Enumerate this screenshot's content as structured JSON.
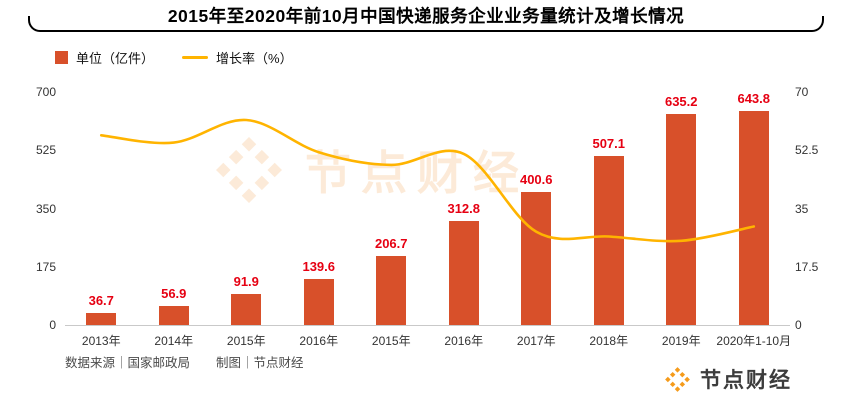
{
  "title": {
    "text": "2015年至2020年前10月中国快递服务企业业务量统计及增长情况"
  },
  "legend": {
    "bar": "单位（亿件）",
    "line": "增长率（%）"
  },
  "chart_data": {
    "type": "bar",
    "subtype": "bar+line combo (dual axis)",
    "title": "2015年至2020年前10月中国快递服务企业业务量统计及增长情况",
    "categories": [
      "2013年",
      "2014年",
      "2015年",
      "2016年",
      "2015年",
      "2016年",
      "2017年",
      "2018年",
      "2019年",
      "2020年1-10月"
    ],
    "series": [
      {
        "name": "单位（亿件）",
        "type": "bar",
        "axis": "left",
        "values": [
          36.7,
          56.9,
          91.9,
          139.6,
          206.7,
          312.8,
          400.6,
          507.1,
          635.2,
          643.8
        ]
      },
      {
        "name": "增长率（%）",
        "type": "line",
        "axis": "right",
        "values": [
          57.0,
          54.8,
          61.6,
          51.9,
          48.1,
          51.4,
          28.0,
          26.6,
          25.3,
          29.6
        ]
      }
    ],
    "left_axis": {
      "ticks": [
        700,
        525,
        350,
        175,
        0
      ],
      "min": 0,
      "max": 700
    },
    "right_axis": {
      "ticks": [
        70,
        52.5,
        35,
        17.5,
        0
      ],
      "min": 0,
      "max": 70
    },
    "grid": false,
    "legend_position": "top-left",
    "colors": {
      "bar": "#d8502a",
      "bar_label": "#e60012",
      "line": "#ffb400"
    }
  },
  "footer": {
    "source": "数据来源｜国家邮政局",
    "credit": "制图｜节点财经",
    "brand": "节点财经"
  },
  "watermark": {
    "text": "节点财经"
  }
}
